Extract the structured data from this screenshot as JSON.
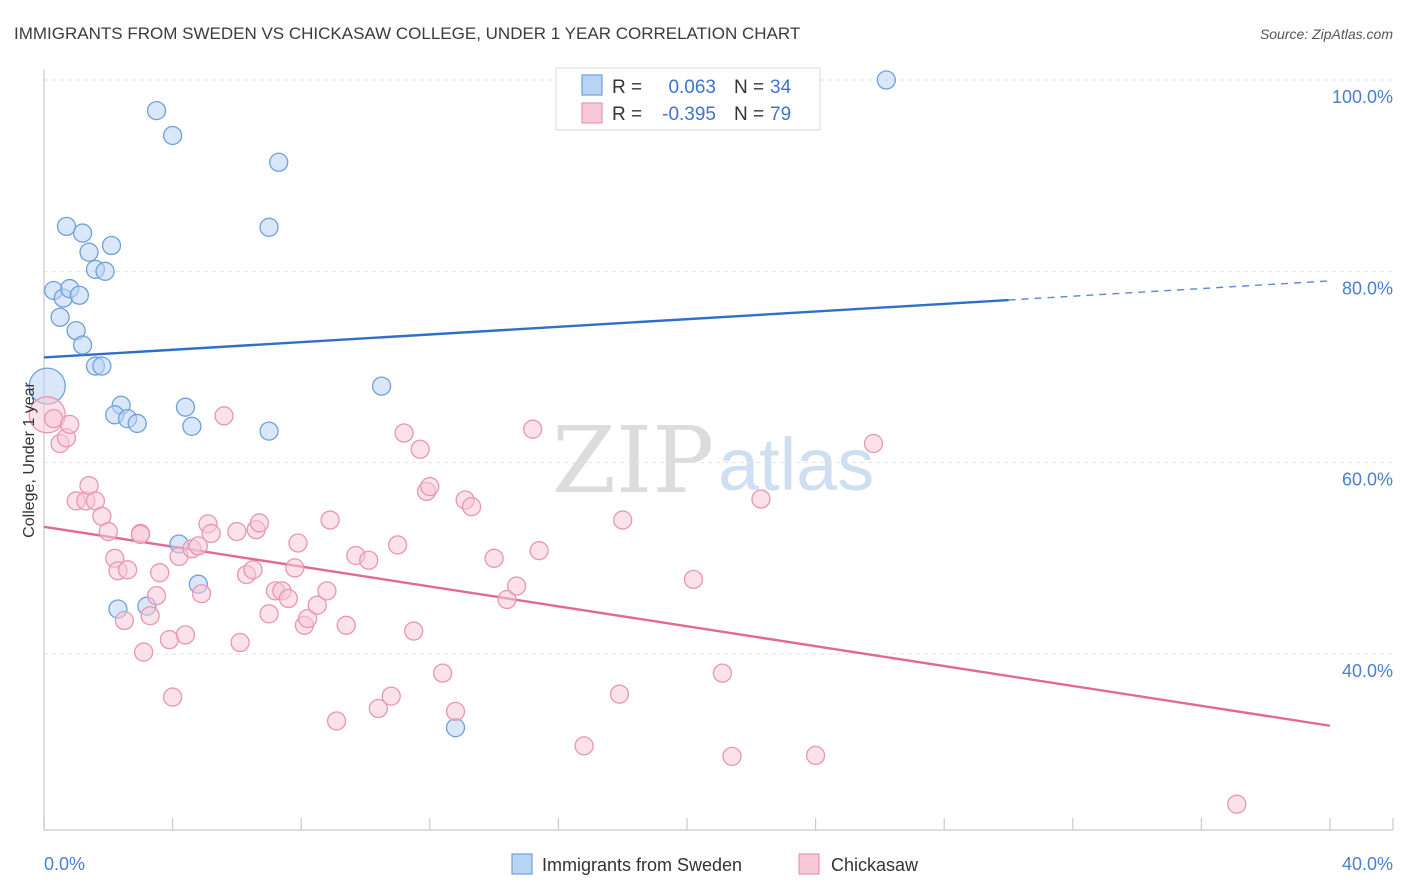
{
  "chart_data": {
    "type": "scatter",
    "title": "IMMIGRANTS FROM SWEDEN VS CHICKASAW COLLEGE, UNDER 1 YEAR CORRELATION CHART",
    "source": "Source: ZipAtlas.com",
    "ylabel": "College, Under 1 year",
    "xlabel": "",
    "xlim": [
      0,
      40
    ],
    "ylim": [
      20,
      104
    ],
    "y_ticks": [
      {
        "value": 100,
        "label": "100.0%"
      },
      {
        "value": 80,
        "label": "80.0%"
      },
      {
        "value": 60,
        "label": "60.0%"
      },
      {
        "value": 40,
        "label": "40.0%"
      }
    ],
    "x_ticks": [
      {
        "value": 0,
        "label": "0.0%"
      },
      {
        "value": 40,
        "label": "40.0%"
      }
    ],
    "grid": true,
    "watermark": {
      "zip": "ZIP",
      "atlas": "atlas"
    },
    "legend": {
      "position": "top-center",
      "r_label": "R =",
      "n_label": "N =",
      "entries": [
        {
          "r": "0.063",
          "n": "34"
        },
        {
          "r": "-0.395",
          "n": "79"
        }
      ]
    },
    "series": [
      {
        "name": "Immigrants from Sweden",
        "color": "#6fa0dd",
        "fill": "#b9d3f3",
        "trend": {
          "x0": 0,
          "y0": 71.0,
          "x1": 30,
          "y1": 77.0,
          "x_dash_end": 40,
          "y_dash_end": 79.0,
          "color": "#2f6fc7"
        },
        "points": [
          {
            "x": 0.1,
            "y": 68.0,
            "big": true
          },
          {
            "x": 0.3,
            "y": 78.0
          },
          {
            "x": 0.5,
            "y": 75.2
          },
          {
            "x": 0.6,
            "y": 77.2
          },
          {
            "x": 0.8,
            "y": 78.2
          },
          {
            "x": 0.7,
            "y": 84.7
          },
          {
            "x": 1.2,
            "y": 84.0
          },
          {
            "x": 1.0,
            "y": 73.8
          },
          {
            "x": 1.2,
            "y": 72.3
          },
          {
            "x": 1.4,
            "y": 82.0
          },
          {
            "x": 1.6,
            "y": 80.2
          },
          {
            "x": 1.9,
            "y": 80.0
          },
          {
            "x": 2.1,
            "y": 82.7
          },
          {
            "x": 1.6,
            "y": 70.1
          },
          {
            "x": 1.8,
            "y": 70.1
          },
          {
            "x": 2.4,
            "y": 66.0
          },
          {
            "x": 2.2,
            "y": 65.0
          },
          {
            "x": 2.6,
            "y": 64.6
          },
          {
            "x": 2.9,
            "y": 64.1
          },
          {
            "x": 3.5,
            "y": 96.8
          },
          {
            "x": 4.0,
            "y": 94.2
          },
          {
            "x": 4.4,
            "y": 65.8
          },
          {
            "x": 4.6,
            "y": 63.8
          },
          {
            "x": 7.3,
            "y": 91.4
          },
          {
            "x": 7.0,
            "y": 84.6
          },
          {
            "x": 7.0,
            "y": 63.3
          },
          {
            "x": 10.5,
            "y": 68.0
          },
          {
            "x": 4.2,
            "y": 51.5
          },
          {
            "x": 4.8,
            "y": 47.3
          },
          {
            "x": 2.3,
            "y": 44.7
          },
          {
            "x": 3.2,
            "y": 45.0
          },
          {
            "x": 12.8,
            "y": 32.3
          },
          {
            "x": 26.2,
            "y": 100.0
          },
          {
            "x": 1.1,
            "y": 77.5
          }
        ]
      },
      {
        "name": "Chickasaw",
        "color": "#e896b1",
        "fill": "#f7c9d7",
        "trend": {
          "x0": 0,
          "y0": 53.3,
          "x1": 40,
          "y1": 32.5,
          "color": "#e06a95"
        },
        "points": [
          {
            "x": 0.1,
            "y": 65.0,
            "big": true
          },
          {
            "x": 0.3,
            "y": 64.6
          },
          {
            "x": 0.5,
            "y": 62.0
          },
          {
            "x": 0.7,
            "y": 62.6
          },
          {
            "x": 0.8,
            "y": 64.0
          },
          {
            "x": 1.0,
            "y": 56.0
          },
          {
            "x": 1.3,
            "y": 56.0
          },
          {
            "x": 1.4,
            "y": 57.6
          },
          {
            "x": 1.6,
            "y": 56.0
          },
          {
            "x": 1.8,
            "y": 54.4
          },
          {
            "x": 2.0,
            "y": 52.8
          },
          {
            "x": 2.2,
            "y": 50.0
          },
          {
            "x": 2.3,
            "y": 48.7
          },
          {
            "x": 2.6,
            "y": 48.8
          },
          {
            "x": 3.0,
            "y": 52.6
          },
          {
            "x": 2.5,
            "y": 43.5
          },
          {
            "x": 3.1,
            "y": 40.2
          },
          {
            "x": 3.3,
            "y": 44.0
          },
          {
            "x": 3.5,
            "y": 46.1
          },
          {
            "x": 3.6,
            "y": 48.5
          },
          {
            "x": 3.9,
            "y": 41.5
          },
          {
            "x": 4.0,
            "y": 35.5
          },
          {
            "x": 4.2,
            "y": 50.2
          },
          {
            "x": 4.4,
            "y": 42.0
          },
          {
            "x": 4.6,
            "y": 51.0
          },
          {
            "x": 4.8,
            "y": 51.3
          },
          {
            "x": 4.9,
            "y": 46.3
          },
          {
            "x": 5.1,
            "y": 53.6
          },
          {
            "x": 5.2,
            "y": 52.6
          },
          {
            "x": 5.6,
            "y": 64.9
          },
          {
            "x": 6.0,
            "y": 52.8
          },
          {
            "x": 6.1,
            "y": 41.2
          },
          {
            "x": 6.3,
            "y": 48.3
          },
          {
            "x": 6.5,
            "y": 48.8
          },
          {
            "x": 6.6,
            "y": 53.0
          },
          {
            "x": 6.7,
            "y": 53.7
          },
          {
            "x": 7.0,
            "y": 44.2
          },
          {
            "x": 7.2,
            "y": 46.6
          },
          {
            "x": 7.4,
            "y": 46.6
          },
          {
            "x": 7.6,
            "y": 45.8
          },
          {
            "x": 7.8,
            "y": 49.0
          },
          {
            "x": 7.9,
            "y": 51.6
          },
          {
            "x": 8.1,
            "y": 43.0
          },
          {
            "x": 8.2,
            "y": 43.7
          },
          {
            "x": 8.5,
            "y": 45.1
          },
          {
            "x": 8.8,
            "y": 46.6
          },
          {
            "x": 8.9,
            "y": 54.0
          },
          {
            "x": 9.1,
            "y": 33.0
          },
          {
            "x": 9.4,
            "y": 43.0
          },
          {
            "x": 9.7,
            "y": 50.3
          },
          {
            "x": 10.1,
            "y": 49.8
          },
          {
            "x": 10.4,
            "y": 34.3
          },
          {
            "x": 10.8,
            "y": 35.6
          },
          {
            "x": 11.0,
            "y": 51.4
          },
          {
            "x": 11.2,
            "y": 63.1
          },
          {
            "x": 11.5,
            "y": 42.4
          },
          {
            "x": 11.7,
            "y": 61.4
          },
          {
            "x": 11.9,
            "y": 57.0
          },
          {
            "x": 12.0,
            "y": 57.5
          },
          {
            "x": 12.4,
            "y": 38.0
          },
          {
            "x": 12.8,
            "y": 34.0
          },
          {
            "x": 13.1,
            "y": 56.1
          },
          {
            "x": 13.3,
            "y": 55.4
          },
          {
            "x": 14.0,
            "y": 50.0
          },
          {
            "x": 14.4,
            "y": 45.7
          },
          {
            "x": 14.7,
            "y": 47.1
          },
          {
            "x": 15.2,
            "y": 63.5
          },
          {
            "x": 15.4,
            "y": 50.8
          },
          {
            "x": 16.8,
            "y": 30.4
          },
          {
            "x": 17.9,
            "y": 35.8
          },
          {
            "x": 18.0,
            "y": 54.0
          },
          {
            "x": 20.2,
            "y": 47.8
          },
          {
            "x": 21.1,
            "y": 38.0
          },
          {
            "x": 21.4,
            "y": 29.3
          },
          {
            "x": 22.3,
            "y": 56.2
          },
          {
            "x": 24.0,
            "y": 29.4
          },
          {
            "x": 25.8,
            "y": 62.0
          },
          {
            "x": 37.1,
            "y": 24.3
          },
          {
            "x": 3.0,
            "y": 52.5
          }
        ]
      }
    ]
  }
}
